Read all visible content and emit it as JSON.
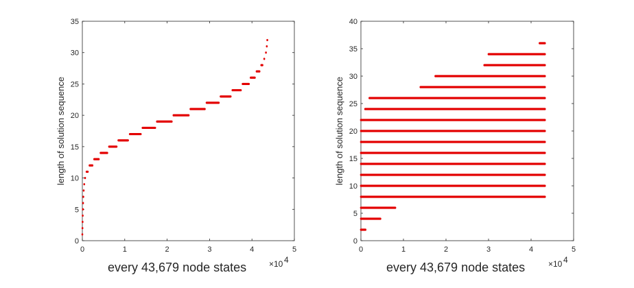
{
  "chart_data": [
    {
      "type": "scatter",
      "xlabel": "every 43,679 node states",
      "ylabel": "length of solution sequence",
      "x_exponent_label": "×10",
      "x_exponent_power": "4",
      "xlim": [
        0,
        50000
      ],
      "ylim": [
        0,
        35
      ],
      "xticks": [
        0,
        10000,
        20000,
        30000,
        40000,
        50000
      ],
      "xtick_labels": [
        "0",
        "1",
        "2",
        "3",
        "4",
        "5"
      ],
      "yticks": [
        0,
        5,
        10,
        15,
        20,
        25,
        30,
        35
      ],
      "grid": false,
      "color": "#e30000",
      "series": [
        {
          "name": "",
          "segments": [
            {
              "y": 1,
              "x_start": 0,
              "x_end": 30
            },
            {
              "y": 2,
              "x_start": 30,
              "x_end": 60
            },
            {
              "y": 3,
              "x_start": 60,
              "x_end": 90
            },
            {
              "y": 4,
              "x_start": 90,
              "x_end": 130
            },
            {
              "y": 5,
              "x_start": 130,
              "x_end": 170
            },
            {
              "y": 6,
              "x_start": 170,
              "x_end": 230
            },
            {
              "y": 7,
              "x_start": 230,
              "x_end": 320
            },
            {
              "y": 8,
              "x_start": 320,
              "x_end": 450
            },
            {
              "y": 9,
              "x_start": 450,
              "x_end": 650
            },
            {
              "y": 10,
              "x_start": 650,
              "x_end": 1000
            },
            {
              "y": 11,
              "x_start": 1000,
              "x_end": 1700
            },
            {
              "y": 12,
              "x_start": 1700,
              "x_end": 2800
            },
            {
              "y": 13,
              "x_start": 2800,
              "x_end": 4300
            },
            {
              "y": 14,
              "x_start": 4300,
              "x_end": 6300
            },
            {
              "y": 15,
              "x_start": 6300,
              "x_end": 8500
            },
            {
              "y": 16,
              "x_start": 8500,
              "x_end": 11200
            },
            {
              "y": 17,
              "x_start": 11200,
              "x_end": 14200
            },
            {
              "y": 18,
              "x_start": 14200,
              "x_end": 17600
            },
            {
              "y": 19,
              "x_start": 17600,
              "x_end": 21500
            },
            {
              "y": 20,
              "x_start": 21500,
              "x_end": 25500
            },
            {
              "y": 21,
              "x_start": 25500,
              "x_end": 29300
            },
            {
              "y": 22,
              "x_start": 29300,
              "x_end": 32600
            },
            {
              "y": 23,
              "x_start": 32600,
              "x_end": 35400
            },
            {
              "y": 24,
              "x_start": 35400,
              "x_end": 37800
            },
            {
              "y": 25,
              "x_start": 37800,
              "x_end": 39700
            },
            {
              "y": 26,
              "x_start": 39700,
              "x_end": 41100
            },
            {
              "y": 27,
              "x_start": 41100,
              "x_end": 42200
            },
            {
              "y": 28,
              "x_start": 42200,
              "x_end": 42900
            },
            {
              "y": 29,
              "x_start": 42900,
              "x_end": 43300
            },
            {
              "y": 30,
              "x_start": 43300,
              "x_end": 43500
            },
            {
              "y": 31,
              "x_start": 43500,
              "x_end": 43620
            },
            {
              "y": 32,
              "x_start": 43620,
              "x_end": 43679
            }
          ]
        }
      ]
    },
    {
      "type": "scatter",
      "xlabel": "every 43,679 node states",
      "ylabel": "length of solution sequence",
      "x_exponent_label": "×10",
      "x_exponent_power": "4",
      "xlim": [
        0,
        50000
      ],
      "ylim": [
        0,
        40
      ],
      "xticks": [
        0,
        10000,
        20000,
        30000,
        40000,
        50000
      ],
      "xtick_labels": [
        "0",
        "1",
        "2",
        "3",
        "4",
        "5"
      ],
      "yticks": [
        0,
        5,
        10,
        15,
        20,
        25,
        30,
        35,
        40
      ],
      "grid": false,
      "color": "#e30000",
      "series": [
        {
          "name": "",
          "rows": [
            {
              "y": 2,
              "x_start": 0,
              "x_end": 1500
            },
            {
              "y": 4,
              "x_start": 0,
              "x_end": 5000
            },
            {
              "y": 6,
              "x_start": 0,
              "x_end": 8500
            },
            {
              "y": 8,
              "x_start": 0,
              "x_end": 43679
            },
            {
              "y": 10,
              "x_start": 0,
              "x_end": 43679
            },
            {
              "y": 12,
              "x_start": 0,
              "x_end": 43679
            },
            {
              "y": 14,
              "x_start": 0,
              "x_end": 43679
            },
            {
              "y": 16,
              "x_start": 0,
              "x_end": 43679
            },
            {
              "y": 18,
              "x_start": 0,
              "x_end": 43679
            },
            {
              "y": 20,
              "x_start": 0,
              "x_end": 43679
            },
            {
              "y": 22,
              "x_start": 0,
              "x_end": 43679
            },
            {
              "y": 24,
              "x_start": 1000,
              "x_end": 43679
            },
            {
              "y": 26,
              "x_start": 2000,
              "x_end": 43679
            },
            {
              "y": 28,
              "x_start": 14000,
              "x_end": 43679
            },
            {
              "y": 30,
              "x_start": 17500,
              "x_end": 43679
            },
            {
              "y": 32,
              "x_start": 29000,
              "x_end": 43679
            },
            {
              "y": 34,
              "x_start": 30000,
              "x_end": 43679
            },
            {
              "y": 36,
              "x_start": 42000,
              "x_end": 43679
            }
          ]
        }
      ]
    }
  ]
}
